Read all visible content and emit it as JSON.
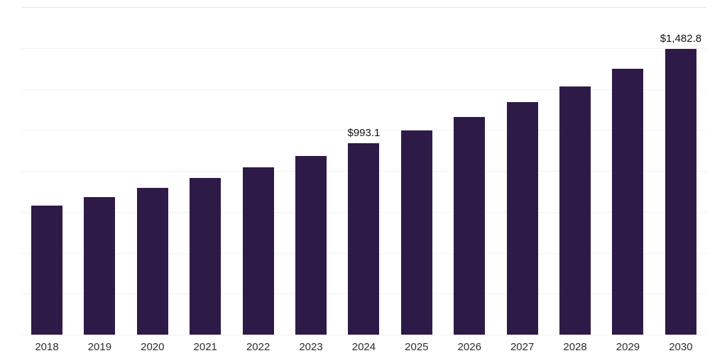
{
  "chart_data": {
    "type": "bar",
    "title": "",
    "xlabel": "",
    "ylabel": "",
    "categories": [
      "2018",
      "2019",
      "2020",
      "2021",
      "2022",
      "2023",
      "2024",
      "2025",
      "2026",
      "2027",
      "2028",
      "2029",
      "2030"
    ],
    "values": [
      670,
      715,
      762,
      815,
      868,
      928,
      993.1,
      1058,
      1128,
      1208,
      1288,
      1380,
      1482.8
    ],
    "labeled_points": [
      {
        "category": "2024",
        "label": "$993.1"
      },
      {
        "category": "2030",
        "label": "$1,482.8"
      }
    ],
    "bar_color": "#2E1A47",
    "ylim": [
      0,
      1700
    ],
    "gridline_count": 9,
    "grid": true,
    "legend_position": "none"
  }
}
